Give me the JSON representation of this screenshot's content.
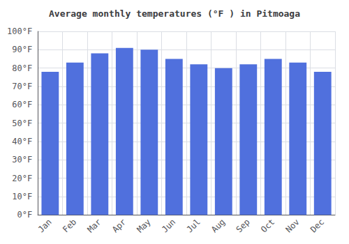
{
  "chart_data": {
    "type": "bar",
    "title": "Average monthly temperatures (°F ) in Pitmoaga",
    "categories": [
      "Jan",
      "Feb",
      "Mar",
      "Apr",
      "May",
      "Jun",
      "Jul",
      "Aug",
      "Sep",
      "Oct",
      "Nov",
      "Dec"
    ],
    "values": [
      78,
      83,
      88,
      91,
      90,
      85,
      82,
      80,
      82,
      85,
      83,
      78
    ],
    "ylim": [
      0,
      100
    ],
    "yticks": [
      {
        "value": 0,
        "label": "0°F"
      },
      {
        "value": 10,
        "label": "10°F"
      },
      {
        "value": 20,
        "label": "20°F"
      },
      {
        "value": 30,
        "label": "30°F"
      },
      {
        "value": 40,
        "label": "40°F"
      },
      {
        "value": 50,
        "label": "50°F"
      },
      {
        "value": 60,
        "label": "60°F"
      },
      {
        "value": 70,
        "label": "70°F"
      },
      {
        "value": 80,
        "label": "80°F"
      },
      {
        "value": 90,
        "label": "90°F"
      },
      {
        "value": 100,
        "label": "100°F"
      }
    ],
    "grid": true
  }
}
